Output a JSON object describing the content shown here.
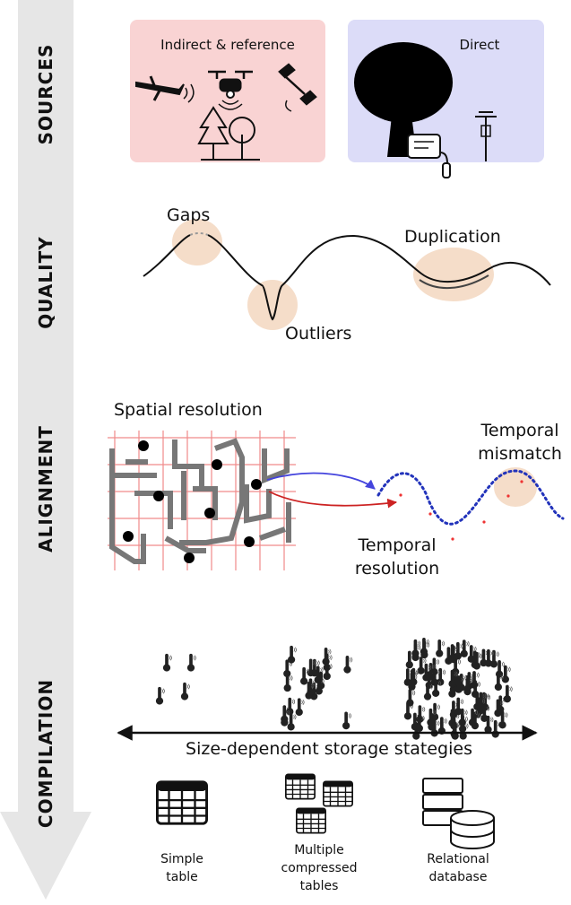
{
  "stages": [
    "SOURCES",
    "QUALITY",
    "ALIGNMENT",
    "COMPILATION"
  ],
  "sources": {
    "indirect": "Indirect & reference",
    "direct": "Direct"
  },
  "quality": {
    "gaps": "Gaps",
    "duplication": "Duplication",
    "outliers": "Outliers"
  },
  "alignment": {
    "spatial": "Spatial resolution",
    "mismatch": [
      "Temporal",
      "mismatch"
    ],
    "temporal": [
      "Temporal",
      "resolution"
    ]
  },
  "compilation": {
    "axis": "Size-dependent storage stategies",
    "options": [
      [
        "Simple",
        "table"
      ],
      [
        "Multiple",
        "compressed",
        "tables"
      ],
      [
        "Relational",
        "database"
      ]
    ]
  }
}
